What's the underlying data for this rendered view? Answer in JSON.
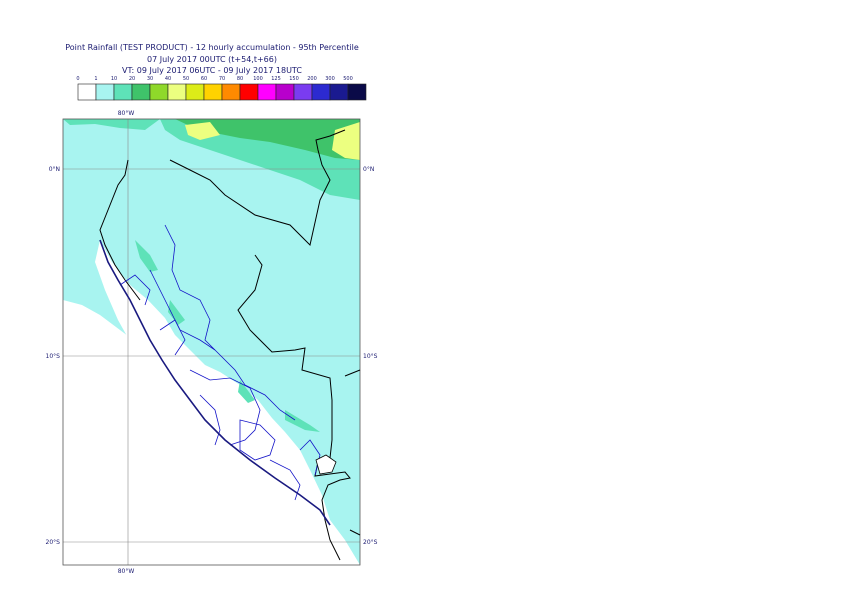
{
  "title": {
    "line1": "Point Rainfall (TEST PRODUCT) - 12 hourly accumulation - 95th Percentile",
    "line2": "07 July 2017 00UTC (t+54,t+66)",
    "line3": "VT: 09 July 2017 06UTC - 09 July 2017 18UTC"
  },
  "legend": {
    "thresholds": [
      "0",
      "1",
      "10",
      "20",
      "30",
      "40",
      "50",
      "60",
      "70",
      "80",
      "100",
      "125",
      "150",
      "200",
      "300",
      "500"
    ],
    "colors": [
      "#ffffff",
      "#a8f4f0",
      "#5ee2b8",
      "#3fc36a",
      "#8fd82a",
      "#ecff80",
      "#dcec18",
      "#ffd200",
      "#ff8a00",
      "#ff0000",
      "#ff00ff",
      "#b800cc",
      "#7a3cf0",
      "#2c2ad0",
      "#1a1a90",
      "#0a0a48"
    ]
  },
  "map": {
    "lat_labels": [
      "0°N",
      "10°S",
      "20°S"
    ],
    "lon_labels": [
      "80°W",
      "80°W"
    ],
    "colors": {
      "background_rain": "#a8f4f0",
      "moderate_rain": "#5ee2b8",
      "heavier_rain": "#3fc36a",
      "light_yellow": "#ecff80",
      "dry_land": "#ffffff",
      "country_border": "#000000",
      "admin_border": "#0000cc",
      "graticule": "#8a8a8a",
      "coastline": "#1a1a80"
    }
  }
}
